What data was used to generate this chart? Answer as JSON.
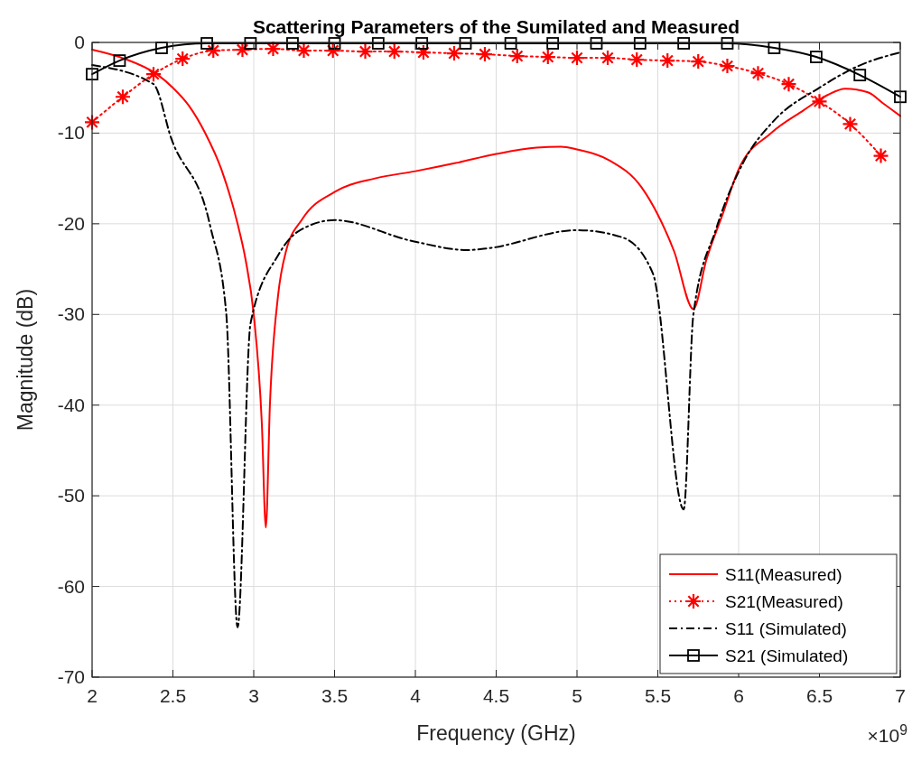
{
  "chart_data": {
    "type": "line",
    "title": "Scattering Parameters of the Sumilated and Measured",
    "xlabel": "Frequency (GHz)",
    "ylabel": "Magnitude (dB)",
    "annotations": [
      "×10$^{9}$"
    ],
    "xlim": [
      2,
      7
    ],
    "ylim": [
      -70,
      0
    ],
    "xticks": [
      2,
      2.5,
      3,
      3.5,
      4,
      4.5,
      5,
      5.5,
      6,
      6.5,
      7
    ],
    "yticks": [
      -70,
      -60,
      -50,
      -40,
      -30,
      -20,
      -10,
      0
    ],
    "grid": true,
    "legend": "bottom right",
    "series": [
      {
        "name": "S11(Measured)",
        "color": "#ff0000",
        "line_style": "solid",
        "marker": "none",
        "x": [
          2,
          2.2,
          2.4,
          2.5,
          2.6,
          2.7,
          2.8,
          2.9,
          2.95,
          3.0,
          3.05,
          3.075,
          3.1,
          3.15,
          3.2,
          3.3,
          3.5,
          3.75,
          4.0,
          4.25,
          4.5,
          4.75,
          4.9,
          5.0,
          5.2,
          5.4,
          5.5,
          5.6,
          5.72,
          5.8,
          5.9,
          6.0,
          6.2,
          6.4,
          6.55,
          6.66,
          6.8,
          6.9,
          7.0
        ],
        "values": [
          -0.8,
          -1.8,
          -3.5,
          -5,
          -7,
          -10,
          -14,
          -20,
          -24,
          -30,
          -42,
          -53.5,
          -40,
          -28,
          -23,
          -19.5,
          -16.5,
          -15,
          -14.2,
          -13.3,
          -12.3,
          -11.6,
          -11.5,
          -11.8,
          -13,
          -16,
          -19,
          -23,
          -29.4,
          -24,
          -19,
          -14,
          -10,
          -7.5,
          -5.8,
          -5.1,
          -5.5,
          -6.8,
          -8.1
        ]
      },
      {
        "name": "S21(Measured)",
        "color": "#ff0000",
        "line_style": "dotted",
        "marker": "cross",
        "x": [
          2.0,
          2.19,
          2.38,
          2.56,
          2.75,
          2.93,
          3.12,
          3.31,
          3.49,
          3.69,
          3.87,
          4.05,
          4.24,
          4.43,
          4.63,
          4.82,
          5.0,
          5.19,
          5.37,
          5.56,
          5.75,
          5.93,
          6.12,
          6.31,
          6.5,
          6.69,
          6.88
        ],
        "values": [
          -8.8,
          -6.0,
          -3.5,
          -1.8,
          -0.9,
          -0.8,
          -0.7,
          -0.9,
          -0.9,
          -1.0,
          -1.0,
          -1.1,
          -1.2,
          -1.3,
          -1.5,
          -1.6,
          -1.7,
          -1.7,
          -1.9,
          -2.0,
          -2.1,
          -2.6,
          -3.4,
          -4.6,
          -6.5,
          -9.0,
          -12.5
        ]
      },
      {
        "name": "S11 (Simulated)",
        "color": "#000000",
        "line_style": "dashdot",
        "marker": "none",
        "x": [
          2.0,
          2.38,
          2.49,
          2.73,
          2.83,
          2.9,
          2.98,
          3.15,
          3.27,
          3.5,
          3.98,
          4.32,
          4.45,
          5.0,
          5.28,
          5.47,
          5.66,
          5.72,
          5.86,
          6.03,
          6.22,
          6.5,
          6.74,
          7.0
        ],
        "values": [
          -2.5,
          -4.6,
          -10.6,
          -20.2,
          -29.9,
          -64.5,
          -31,
          -23.5,
          -20.9,
          -19.6,
          -21.9,
          -22.9,
          -22.7,
          -20.7,
          -21.5,
          -25.5,
          -51.5,
          -30,
          -20.6,
          -13.2,
          -8.6,
          -5.0,
          -2.6,
          -1.1
        ]
      },
      {
        "name": "S21 (Simulated)",
        "color": "#000000",
        "line_style": "solid",
        "marker": "square",
        "x": [
          2.0,
          2.17,
          2.43,
          2.71,
          2.98,
          3.24,
          3.5,
          3.77,
          4.04,
          4.31,
          4.59,
          4.85,
          5.12,
          5.39,
          5.66,
          5.93,
          6.22,
          6.48,
          6.75,
          7.0
        ],
        "values": [
          -3.5,
          -2.0,
          -0.6,
          -0.1,
          -0.1,
          -0.1,
          -0.1,
          -0.1,
          -0.1,
          -0.1,
          -0.1,
          -0.1,
          -0.1,
          -0.1,
          -0.1,
          -0.1,
          -0.6,
          -1.6,
          -3.6,
          -6.0
        ]
      }
    ]
  }
}
